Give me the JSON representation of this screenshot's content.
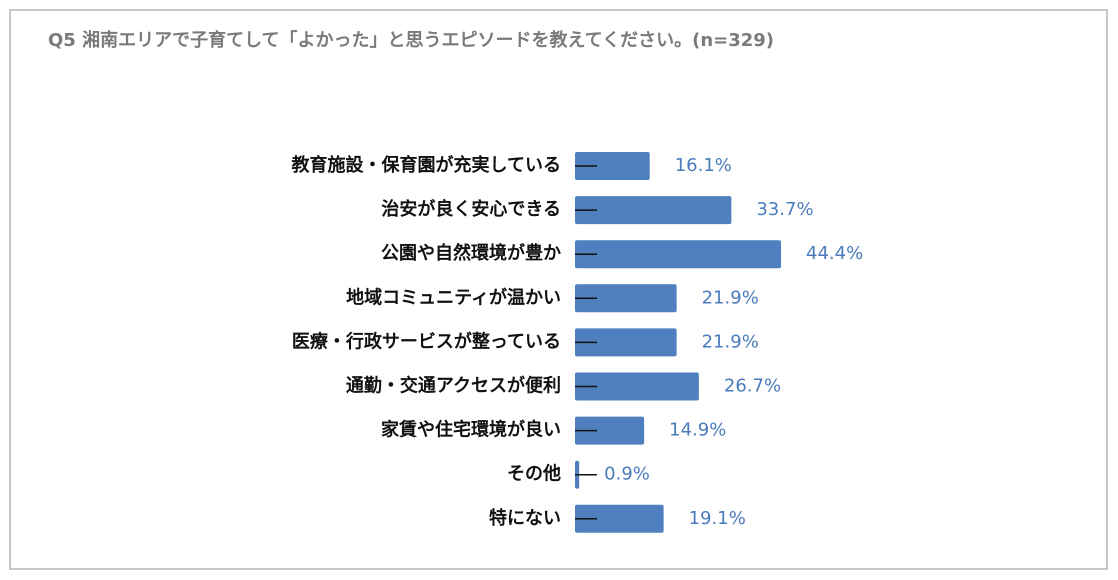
{
  "chart_data": {
    "type": "hbar",
    "title": "Q5 湘南エリアで子育てして「よかった」と思うエピソードを教えてください。(n=329)",
    "categories": [
      "教育施設・保育園が充実している",
      "治安が良く安心できる",
      "公園や自然環境が豊か",
      "地域コミュニティが温かい",
      "医療・行政サービスが整っている",
      "通勤・交通アクセスが便利",
      "家賃や住宅環境が良い",
      "その他",
      "特にない"
    ],
    "values": [
      16.1,
      33.7,
      44.4,
      21.9,
      21.9,
      26.7,
      14.9,
      0.9,
      19.1
    ],
    "value_labels": [
      "16.1%",
      "33.7%",
      "44.4%",
      "21.9%",
      "21.9%",
      "26.7%",
      "14.9%",
      "0.9%",
      "19.1%"
    ],
    "color": "#4f7fbf",
    "label_color": "#4a7bbd",
    "xlim": [
      0,
      50
    ]
  }
}
